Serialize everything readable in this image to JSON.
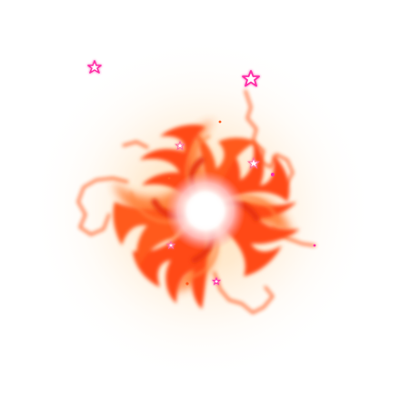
{
  "scene": {
    "subject": "spiral-galaxy-vortex",
    "colors": {
      "background": "#ffffff",
      "glow": "#ffd9a8",
      "arm_outer": "#ff7a30",
      "arm_mid": "#ff4a14",
      "arm_dark": "#e8320c",
      "core": "#ffffff",
      "core_glow": "#ffc0c8",
      "star_stroke": "#ff2fa8",
      "star_fill": "#ffffff",
      "dust": "#ff5a1e"
    }
  }
}
